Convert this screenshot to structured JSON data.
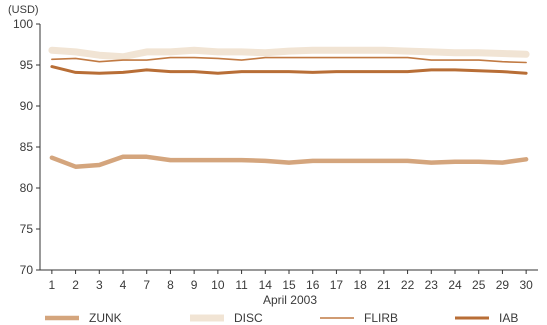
{
  "chart_data": {
    "type": "line",
    "title": "",
    "unit_label": "(USD)",
    "xlabel": "April 2003",
    "ylabel": "",
    "ylim": [
      70,
      100
    ],
    "yticks": [
      70,
      75,
      80,
      85,
      90,
      95,
      100
    ],
    "grid": false,
    "legend_position": "bottom",
    "categories": [
      "1",
      "2",
      "3",
      "4",
      "7",
      "8",
      "9",
      "10",
      "11",
      "14",
      "15",
      "16",
      "17",
      "18",
      "21",
      "22",
      "23",
      "24",
      "25",
      "29",
      "30"
    ],
    "series": [
      {
        "name": "ZUNK",
        "color": "#d4a57d",
        "width": 4.5,
        "values": [
          83.7,
          82.6,
          82.8,
          83.8,
          83.8,
          83.4,
          83.4,
          83.4,
          83.4,
          83.3,
          83.1,
          83.3,
          83.3,
          83.3,
          83.3,
          83.3,
          83.1,
          83.2,
          83.2,
          83.1,
          83.5
        ]
      },
      {
        "name": "DISC",
        "color": "#f1e4d4",
        "width": 7,
        "values": [
          96.8,
          96.6,
          96.2,
          96.0,
          96.6,
          96.6,
          96.8,
          96.6,
          96.6,
          96.5,
          96.7,
          96.8,
          96.8,
          96.8,
          96.8,
          96.7,
          96.6,
          96.5,
          96.5,
          96.4,
          96.3
        ]
      },
      {
        "name": "FLIRB",
        "color": "#c17a43",
        "width": 1.6,
        "values": [
          95.7,
          95.8,
          95.4,
          95.6,
          95.6,
          95.9,
          95.9,
          95.8,
          95.6,
          95.9,
          95.9,
          95.9,
          95.9,
          95.9,
          95.9,
          95.9,
          95.6,
          95.6,
          95.6,
          95.4,
          95.3
        ]
      },
      {
        "name": "IAB",
        "color": "#b86e36",
        "width": 3,
        "values": [
          94.8,
          94.1,
          94.0,
          94.1,
          94.4,
          94.2,
          94.2,
          94.0,
          94.2,
          94.2,
          94.2,
          94.1,
          94.2,
          94.2,
          94.2,
          94.2,
          94.4,
          94.4,
          94.3,
          94.2,
          94.0
        ]
      }
    ]
  }
}
